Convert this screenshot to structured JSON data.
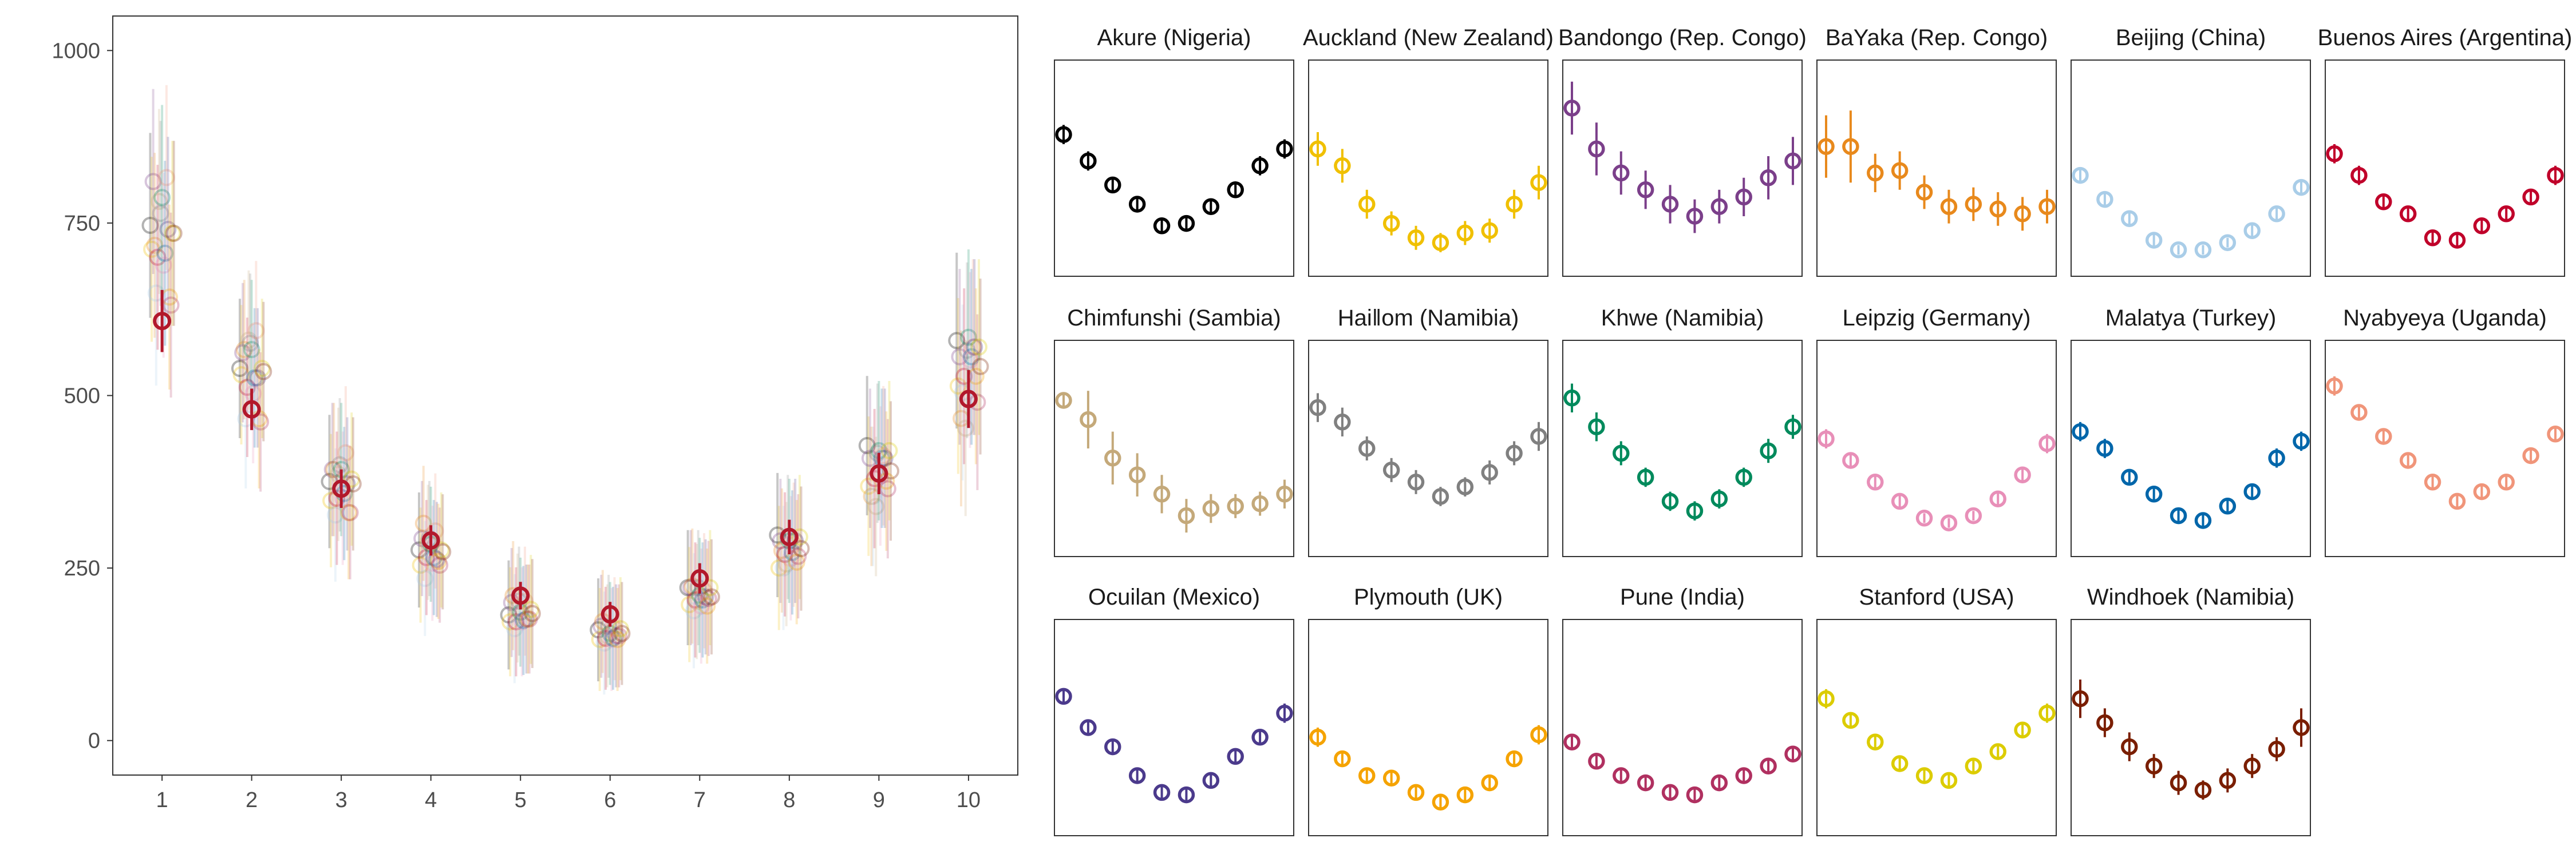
{
  "chart_data": [
    {
      "type": "scatter",
      "title": "",
      "xlabel": "",
      "ylabel": "",
      "x": [
        1,
        2,
        3,
        4,
        5,
        6,
        7,
        8,
        9,
        10
      ],
      "xlim": [
        0.45,
        10.55
      ],
      "ylim": [
        -50,
        1050
      ],
      "xticks": [
        "1",
        "2",
        "3",
        "4",
        "5",
        "6",
        "7",
        "8",
        "9",
        "10"
      ],
      "yticks": [
        0,
        250,
        500,
        750,
        1000
      ],
      "grid": false,
      "overall": {
        "color": "#b2182b",
        "values": [
          608,
          480,
          365,
          290,
          210,
          183,
          235,
          295,
          387,
          495
        ],
        "err": [
          45,
          30,
          28,
          22,
          20,
          18,
          22,
          25,
          30,
          42
        ]
      }
    },
    {
      "type": "scatter",
      "x": [
        1,
        2,
        3,
        4,
        5,
        6,
        7,
        8,
        9,
        10
      ],
      "ylim": [
        0.05,
        0.95
      ],
      "panels": [
        {
          "title": "Akure (Nigeria)",
          "color": "#000000",
          "values": [
            0.64,
            0.53,
            0.43,
            0.35,
            0.26,
            0.27,
            0.34,
            0.41,
            0.51,
            0.58
          ],
          "err": [
            0.04,
            0.04,
            0.03,
            0.03,
            0.03,
            0.03,
            0.03,
            0.03,
            0.04,
            0.04
          ]
        },
        {
          "title": "Auckland (New Zealand)",
          "color": "#f0c000",
          "values": [
            0.58,
            0.51,
            0.35,
            0.27,
            0.21,
            0.19,
            0.23,
            0.24,
            0.35,
            0.44
          ],
          "err": [
            0.07,
            0.07,
            0.06,
            0.05,
            0.05,
            0.04,
            0.05,
            0.05,
            0.06,
            0.07
          ]
        },
        {
          "title": "Bandongo (Rep. Congo)",
          "color": "#7b3f8a",
          "values": [
            0.75,
            0.58,
            0.48,
            0.41,
            0.35,
            0.3,
            0.34,
            0.38,
            0.46,
            0.53
          ],
          "err": [
            0.11,
            0.11,
            0.09,
            0.08,
            0.08,
            0.07,
            0.07,
            0.08,
            0.09,
            0.1
          ]
        },
        {
          "title": "BaYaka (Rep. Congo)",
          "color": "#e8891c",
          "values": [
            0.59,
            0.59,
            0.48,
            0.49,
            0.4,
            0.34,
            0.35,
            0.33,
            0.31,
            0.34
          ],
          "err": [
            0.13,
            0.15,
            0.08,
            0.08,
            0.07,
            0.07,
            0.07,
            0.07,
            0.07,
            0.07
          ]
        },
        {
          "title": "Beijing (China)",
          "color": "#a9cde8",
          "values": [
            0.47,
            0.37,
            0.29,
            0.2,
            0.16,
            0.16,
            0.19,
            0.24,
            0.31,
            0.42
          ],
          "err": [
            0.03,
            0.03,
            0.03,
            0.03,
            0.02,
            0.02,
            0.02,
            0.03,
            0.03,
            0.03
          ]
        },
        {
          "title": "Buenos Aires (Argentina)",
          "color": "#c0002a",
          "values": [
            0.56,
            0.47,
            0.36,
            0.31,
            0.21,
            0.2,
            0.26,
            0.31,
            0.38,
            0.47
          ],
          "err": [
            0.04,
            0.04,
            0.03,
            0.03,
            0.03,
            0.03,
            0.03,
            0.03,
            0.03,
            0.04
          ]
        },
        {
          "title": "Chimfunshi (Sambia)",
          "color": "#c4a97a",
          "values": [
            0.7,
            0.62,
            0.46,
            0.39,
            0.31,
            0.22,
            0.25,
            0.26,
            0.27,
            0.31
          ],
          "err": [
            0.03,
            0.12,
            0.11,
            0.09,
            0.08,
            0.07,
            0.06,
            0.05,
            0.05,
            0.06
          ]
        },
        {
          "title": "Haiǁom (Namibia)",
          "color": "#808080",
          "values": [
            0.67,
            0.61,
            0.5,
            0.41,
            0.36,
            0.3,
            0.34,
            0.4,
            0.48,
            0.55
          ],
          "err": [
            0.06,
            0.06,
            0.05,
            0.05,
            0.05,
            0.04,
            0.04,
            0.05,
            0.05,
            0.06
          ]
        },
        {
          "title": "Khwe (Namibia)",
          "color": "#008a5c",
          "values": [
            0.71,
            0.59,
            0.48,
            0.38,
            0.28,
            0.24,
            0.29,
            0.38,
            0.49,
            0.59
          ],
          "err": [
            0.06,
            0.06,
            0.05,
            0.04,
            0.04,
            0.04,
            0.04,
            0.04,
            0.05,
            0.05
          ]
        },
        {
          "title": "Leipzig (Germany)",
          "color": "#e88fb8",
          "values": [
            0.54,
            0.45,
            0.36,
            0.28,
            0.21,
            0.19,
            0.22,
            0.29,
            0.39,
            0.52
          ],
          "err": [
            0.04,
            0.03,
            0.03,
            0.03,
            0.02,
            0.02,
            0.02,
            0.03,
            0.03,
            0.04
          ]
        },
        {
          "title": "Malatya (Turkey)",
          "color": "#0066aa",
          "values": [
            0.57,
            0.5,
            0.38,
            0.31,
            0.22,
            0.2,
            0.26,
            0.32,
            0.46,
            0.53
          ],
          "err": [
            0.04,
            0.04,
            0.03,
            0.03,
            0.03,
            0.03,
            0.03,
            0.03,
            0.04,
            0.04
          ]
        },
        {
          "title": "Nyabyeya (Uganda)",
          "color": "#f0957a",
          "values": [
            0.76,
            0.65,
            0.55,
            0.45,
            0.36,
            0.28,
            0.32,
            0.36,
            0.47,
            0.56
          ],
          "err": [
            0.04,
            0.03,
            0.03,
            0.03,
            0.03,
            0.03,
            0.03,
            0.03,
            0.03,
            0.03
          ]
        },
        {
          "title": "Ocuilan (Mexico)",
          "color": "#4b3a8c",
          "values": [
            0.63,
            0.5,
            0.42,
            0.3,
            0.23,
            0.22,
            0.28,
            0.38,
            0.46,
            0.56
          ],
          "err": [
            0.03,
            0.03,
            0.03,
            0.03,
            0.03,
            0.03,
            0.03,
            0.03,
            0.03,
            0.04
          ]
        },
        {
          "title": "Plymouth (UK)",
          "color": "#f5a300",
          "values": [
            0.46,
            0.37,
            0.3,
            0.29,
            0.23,
            0.19,
            0.22,
            0.27,
            0.37,
            0.47
          ],
          "err": [
            0.04,
            0.03,
            0.03,
            0.03,
            0.03,
            0.03,
            0.03,
            0.03,
            0.03,
            0.04
          ]
        },
        {
          "title": "Pune (India)",
          "color": "#b03060",
          "values": [
            0.44,
            0.36,
            0.3,
            0.27,
            0.23,
            0.22,
            0.27,
            0.3,
            0.34,
            0.39
          ],
          "err": [
            0.03,
            0.03,
            0.03,
            0.03,
            0.03,
            0.03,
            0.03,
            0.03,
            0.03,
            0.03
          ]
        },
        {
          "title": "Stanford (USA)",
          "color": "#dccc00",
          "values": [
            0.62,
            0.53,
            0.44,
            0.35,
            0.3,
            0.28,
            0.34,
            0.4,
            0.49,
            0.56
          ],
          "err": [
            0.04,
            0.03,
            0.03,
            0.03,
            0.03,
            0.03,
            0.03,
            0.03,
            0.03,
            0.04
          ]
        },
        {
          "title": "Windhoek (Namibia)",
          "color": "#7a1e00",
          "values": [
            0.62,
            0.52,
            0.42,
            0.34,
            0.27,
            0.24,
            0.28,
            0.34,
            0.41,
            0.5
          ],
          "err": [
            0.08,
            0.06,
            0.06,
            0.05,
            0.05,
            0.04,
            0.05,
            0.05,
            0.05,
            0.08
          ]
        }
      ]
    }
  ]
}
